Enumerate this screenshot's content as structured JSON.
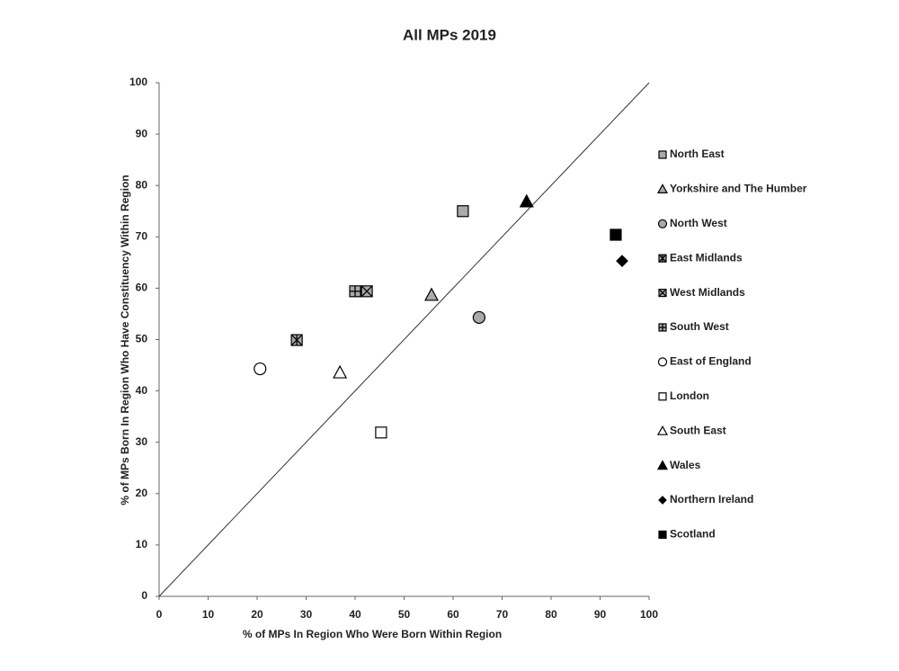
{
  "chart_data": {
    "type": "scatter",
    "title": "All MPs 2019",
    "x_label": "% of MPs In Region Who Were Born Within Region",
    "y_label": "% of MPs Born In Region Who Have Constituency Within Region",
    "xlim": [
      0,
      100
    ],
    "ylim": [
      0,
      100
    ],
    "xticks": [
      0,
      10,
      20,
      30,
      40,
      50,
      60,
      70,
      80,
      90,
      100
    ],
    "yticks": [
      0,
      10,
      20,
      30,
      40,
      50,
      60,
      70,
      80,
      90,
      100
    ],
    "grid": false,
    "legend": "right",
    "series": [
      {
        "name": "North East",
        "marker": "square",
        "color": "#aaaaaa",
        "x": [
          62
        ],
        "values": [
          75
        ]
      },
      {
        "name": "Yorkshire and The Humber",
        "marker": "triangle",
        "color": "#aaaaaa",
        "x": [
          55.6
        ],
        "values": [
          58.7
        ]
      },
      {
        "name": "North West",
        "marker": "circle",
        "color": "#aaaaaa",
        "x": [
          65.3
        ],
        "values": [
          54.3
        ]
      },
      {
        "name": "East Midlands",
        "marker": "asterisk",
        "color": "#aaaaaa",
        "x": [
          28.1
        ],
        "values": [
          49.9
        ]
      },
      {
        "name": "West Midlands",
        "marker": "x-box",
        "color": "#aaaaaa",
        "x": [
          42.4
        ],
        "values": [
          59.4
        ]
      },
      {
        "name": "South West",
        "marker": "plus-box",
        "color": "#aaaaaa",
        "x": [
          40
        ],
        "values": [
          59.4
        ]
      },
      {
        "name": "East of England",
        "marker": "circle",
        "color": "#ffffff",
        "x": [
          20.6
        ],
        "values": [
          44.3
        ]
      },
      {
        "name": "London",
        "marker": "square",
        "color": "#ffffff",
        "x": [
          45.3
        ],
        "values": [
          31.9
        ]
      },
      {
        "name": "South East",
        "marker": "triangle",
        "color": "#ffffff",
        "x": [
          36.9
        ],
        "values": [
          43.6
        ]
      },
      {
        "name": "Wales",
        "marker": "triangle",
        "color": "#000000",
        "x": [
          75
        ],
        "values": [
          76.9
        ]
      },
      {
        "name": "Northern Ireland",
        "marker": "diamond",
        "color": "#000000",
        "x": [
          94.5
        ],
        "values": [
          65.3
        ]
      },
      {
        "name": "Scotland",
        "marker": "square",
        "color": "#000000",
        "x": [
          93.2
        ],
        "values": [
          70.4
        ]
      }
    ]
  }
}
